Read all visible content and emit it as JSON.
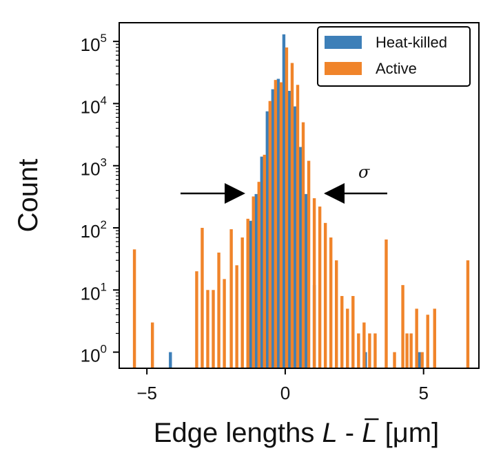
{
  "chart_data": {
    "type": "bar",
    "title": "",
    "ylabel": "Count",
    "xlabel": {
      "prefix": "Edge lengths ",
      "var": "L",
      "sep": " - ",
      "bar_var": "L",
      "unit": " [μm]"
    },
    "yscale": "log",
    "ylim": [
      0.55,
      200000
    ],
    "xlim": [
      -6.0,
      7.0
    ],
    "x_ticks": [
      {
        "value": -5,
        "label": "−5"
      },
      {
        "value": 0,
        "label": "0"
      },
      {
        "value": 5,
        "label": "5"
      }
    ],
    "y_ticks": [
      {
        "value": 1,
        "base": "10",
        "exp": "0"
      },
      {
        "value": 10,
        "base": "10",
        "exp": "1"
      },
      {
        "value": 100,
        "base": "10",
        "exp": "2"
      },
      {
        "value": 1000,
        "base": "10",
        "exp": "3"
      },
      {
        "value": 10000,
        "base": "10",
        "exp": "4"
      },
      {
        "value": 100000,
        "base": "10",
        "exp": "5"
      }
    ],
    "bar_width": 0.11,
    "legend": {
      "position": "top-right"
    },
    "series": [
      {
        "name": "Heat-killed",
        "color": "#3d7fb8",
        "points": [
          [
            -4.15,
            1
          ],
          [
            -1.25,
            130
          ],
          [
            -1.05,
            350
          ],
          [
            -0.85,
            1400
          ],
          [
            -0.65,
            7500
          ],
          [
            -0.45,
            17000
          ],
          [
            -0.25,
            25000
          ],
          [
            -0.05,
            130000
          ],
          [
            0.15,
            16000
          ],
          [
            0.35,
            9000
          ],
          [
            0.55,
            2000
          ],
          [
            0.75,
            350
          ],
          [
            1.05,
            12
          ],
          [
            2.9,
            1
          ],
          [
            4.85,
            1
          ]
        ]
      },
      {
        "name": "Active",
        "color": "#f0842a",
        "points": [
          [
            -5.45,
            45
          ],
          [
            -4.8,
            3
          ],
          [
            -3.2,
            20
          ],
          [
            -3.0,
            100
          ],
          [
            -2.8,
            10
          ],
          [
            -2.6,
            10
          ],
          [
            -2.4,
            40
          ],
          [
            -2.2,
            15
          ],
          [
            -1.95,
            95
          ],
          [
            -1.75,
            25
          ],
          [
            -1.55,
            70
          ],
          [
            -1.35,
            140
          ],
          [
            -1.15,
            320
          ],
          [
            -0.95,
            550
          ],
          [
            -0.75,
            1500
          ],
          [
            -0.55,
            11000
          ],
          [
            -0.35,
            24000
          ],
          [
            -0.15,
            22000
          ],
          [
            0.05,
            80000
          ],
          [
            0.25,
            45000
          ],
          [
            0.45,
            20000
          ],
          [
            0.65,
            5000
          ],
          [
            0.85,
            1200
          ],
          [
            1.05,
            300
          ],
          [
            1.25,
            220
          ],
          [
            1.45,
            120
          ],
          [
            1.65,
            70
          ],
          [
            1.85,
            30
          ],
          [
            2.05,
            8
          ],
          [
            2.25,
            5
          ],
          [
            2.45,
            8
          ],
          [
            2.65,
            2
          ],
          [
            2.85,
            3
          ],
          [
            3.05,
            2
          ],
          [
            3.25,
            2
          ],
          [
            3.65,
            65
          ],
          [
            3.95,
            1
          ],
          [
            4.25,
            12
          ],
          [
            4.4,
            2
          ],
          [
            4.55,
            2
          ],
          [
            4.75,
            5
          ],
          [
            4.95,
            1
          ],
          [
            5.15,
            4
          ],
          [
            5.4,
            5
          ],
          [
            6.6,
            30
          ]
        ]
      }
    ]
  }
}
